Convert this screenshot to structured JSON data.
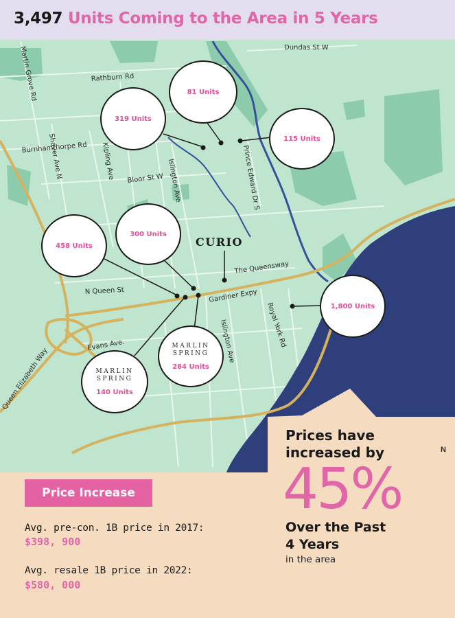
{
  "header": {
    "count": "3,497",
    "title": "Units Coming to the Area in 5 Years"
  },
  "colors": {
    "map_land": "#bfe5cf",
    "map_park": "#8cccac",
    "water": "#2e3f7c",
    "river": "#36509a",
    "highway": "#d4b25e",
    "accent_pink": "#e066a8",
    "header_bg": "#e4ddef",
    "footer_bg": "#f5dcc0"
  },
  "map": {
    "streets": {
      "dundas": "Dundas St W",
      "martin_grove": "Martin Grove Rd",
      "rathburn": "Rathburn Rd",
      "burnhamthorpe": "Burnhamthorpe Rd",
      "shaver": "Shaver Ave N",
      "kipling": "Kipling Ave",
      "bloor": "Bloor St W",
      "islington_north": "Islington Ave",
      "prince_edward": "Prince Edward Dr S",
      "queensway": "The Queensway",
      "n_queen": "N Queen St",
      "gardiner": "Gardiner Expy",
      "islington_south": "Islington Ave",
      "royal_york": "Royal York Rd",
      "evans": "Evans Ave.",
      "qew": "Queen Elizabeth Way"
    },
    "developments": [
      {
        "id": "dev-81",
        "units": "81 Units"
      },
      {
        "id": "dev-319",
        "units": "319 Units"
      },
      {
        "id": "dev-115",
        "units": "115 Units"
      },
      {
        "id": "dev-458",
        "units": "458 Units"
      },
      {
        "id": "dev-300",
        "units": "300 Units"
      },
      {
        "id": "dev-1800",
        "units": "1,800 Units"
      },
      {
        "id": "dev-284",
        "units": "284 Units",
        "brand_line1": "MARLIN",
        "brand_line2": "SPRING"
      },
      {
        "id": "dev-140",
        "units": "140 Units",
        "brand_line1": "MARLIN",
        "brand_line2": "SPRING"
      }
    ],
    "curio": "CURIO",
    "compass": "N"
  },
  "price_increase": {
    "badge": "Price Increase",
    "label_2017": "Avg. pre-con. 1B price in 2017:",
    "value_2017": "$398, 900",
    "label_2022": "Avg. resale 1B price in 2022:",
    "value_2022": "$580, 000"
  },
  "summary": {
    "line1": "Prices have",
    "line2": "increased by",
    "percent": "45%",
    "over_line1": "Over the Past",
    "over_line2": "4 Years",
    "area": "in the area"
  }
}
